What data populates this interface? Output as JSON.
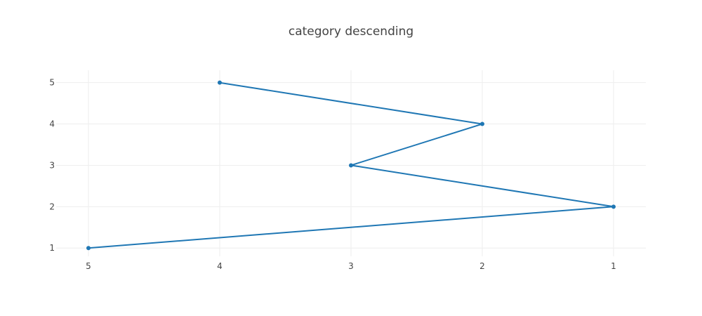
{
  "chart_data": {
    "type": "line",
    "title": "category descending",
    "xaxis": {
      "type": "category",
      "category_order": "descending",
      "categories": [
        "5",
        "4",
        "3",
        "2",
        "1"
      ],
      "grid": true
    },
    "yaxis": {
      "ticks": [
        1,
        2,
        3,
        4,
        5
      ],
      "range": [
        0.8,
        5.3
      ],
      "grid": true
    },
    "series": [
      {
        "mode": "lines+markers",
        "color": "#1f77b4",
        "x": [
          "4",
          "2",
          "3",
          "1",
          "5"
        ],
        "y": [
          5,
          4,
          3,
          2,
          1
        ]
      }
    ]
  }
}
